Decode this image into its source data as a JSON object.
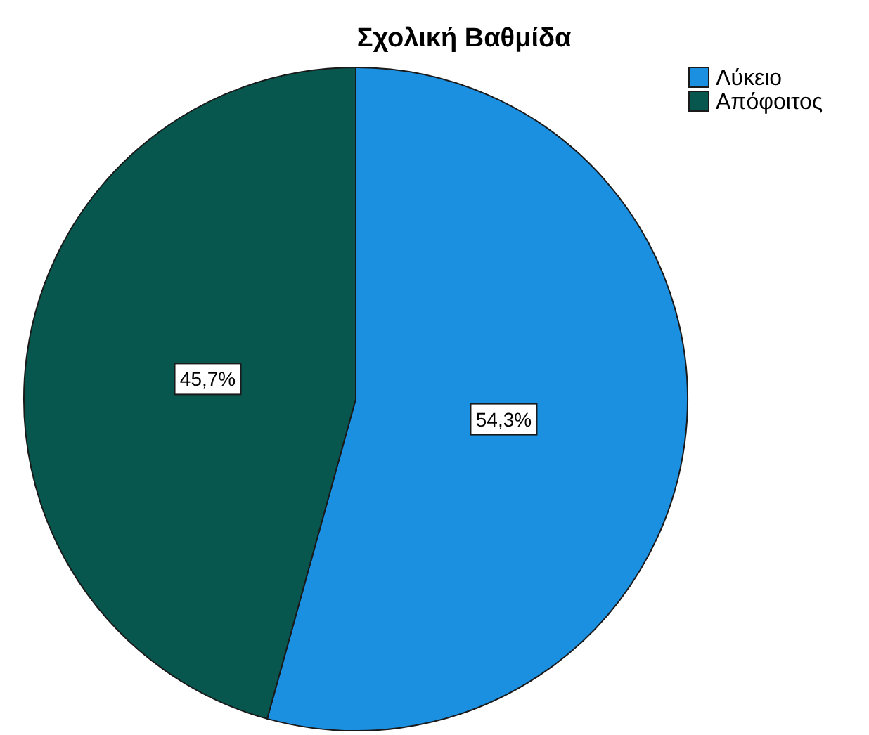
{
  "chart_data": {
    "type": "pie",
    "title": "Σχολική Βαθμίδα",
    "categories": [
      "Λύκειο",
      "Απόφοιτος"
    ],
    "values": [
      54.3,
      45.7
    ],
    "colors": [
      "#1b8fe0",
      "#08574f"
    ],
    "value_labels": [
      "54,3%",
      "45,7%"
    ],
    "legend": "top right"
  }
}
